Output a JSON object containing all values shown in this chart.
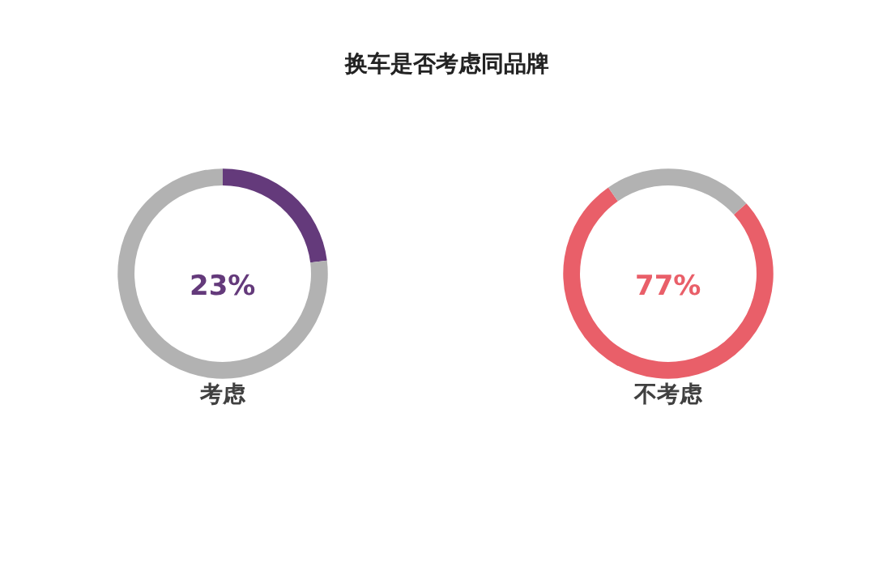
{
  "chart_data": [
    {
      "type": "other",
      "title": "换车是否考虑同品牌"
    },
    {
      "type": "donut",
      "title": "考虑",
      "categories": [
        null,
        null
      ],
      "values": [
        23,
        77
      ],
      "colors": [
        "#643a7b",
        "#b2b2b2"
      ],
      "annotations": [
        "23%"
      ]
    },
    {
      "type": "donut",
      "title": "不考虑",
      "categories": [
        null,
        null
      ],
      "values": [
        77,
        23
      ],
      "colors": [
        "#e95f69",
        "#b2b2b2"
      ],
      "annotations": [
        "77%"
      ]
    }
  ]
}
